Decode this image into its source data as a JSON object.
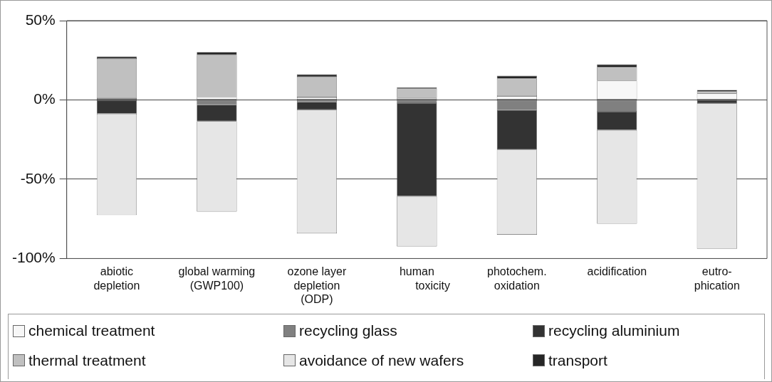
{
  "chart_data": {
    "type": "bar",
    "stacked": true,
    "categories": [
      "abiotic\ndepletion",
      "global warming\n(GWP100)",
      "ozone layer\ndepletion\n(ODP)",
      "human\n          toxicity",
      "photochem.\noxidation",
      "acidification",
      "eutro-\nphication"
    ],
    "series": [
      {
        "name": "chemical treatment",
        "color": "#f7f7f7",
        "values": [
          0,
          1.9,
          1.6,
          1.2,
          2.4,
          12.1,
          4.1
        ]
      },
      {
        "name": "recycling glass",
        "color": "#808080",
        "values": [
          1.2,
          -3,
          -1.2,
          -2,
          -6.4,
          -7.4,
          0
        ]
      },
      {
        "name": "recycling aluminium",
        "color": "#333333",
        "values": [
          -8.7,
          -10.4,
          -5,
          -58.7,
          -25,
          -11.6,
          -2.2
        ]
      },
      {
        "name": "thermal treatment",
        "color": "#c0c0c0",
        "values": [
          25,
          26.5,
          12.9,
          5.9,
          11,
          8.4,
          1.2
        ]
      },
      {
        "name": "avoidance of new wafers",
        "color": "#e6e6e6",
        "values": [
          -63.9,
          -57,
          -78,
          -31.7,
          -53.6,
          -59.1,
          -91.7
        ]
      },
      {
        "name": "transport",
        "color": "#262626",
        "values": [
          1.2,
          1.8,
          1.6,
          0.7,
          1.8,
          1.9,
          1
        ]
      }
    ],
    "ylim": [
      -100,
      50
    ],
    "yticks": [
      {
        "value": -100,
        "label": "-100%"
      },
      {
        "value": -50,
        "label": "-50%"
      },
      {
        "value": 0,
        "label": "0%"
      },
      {
        "value": 50,
        "label": "50%"
      }
    ],
    "grid": "y",
    "legend": "bottom"
  }
}
